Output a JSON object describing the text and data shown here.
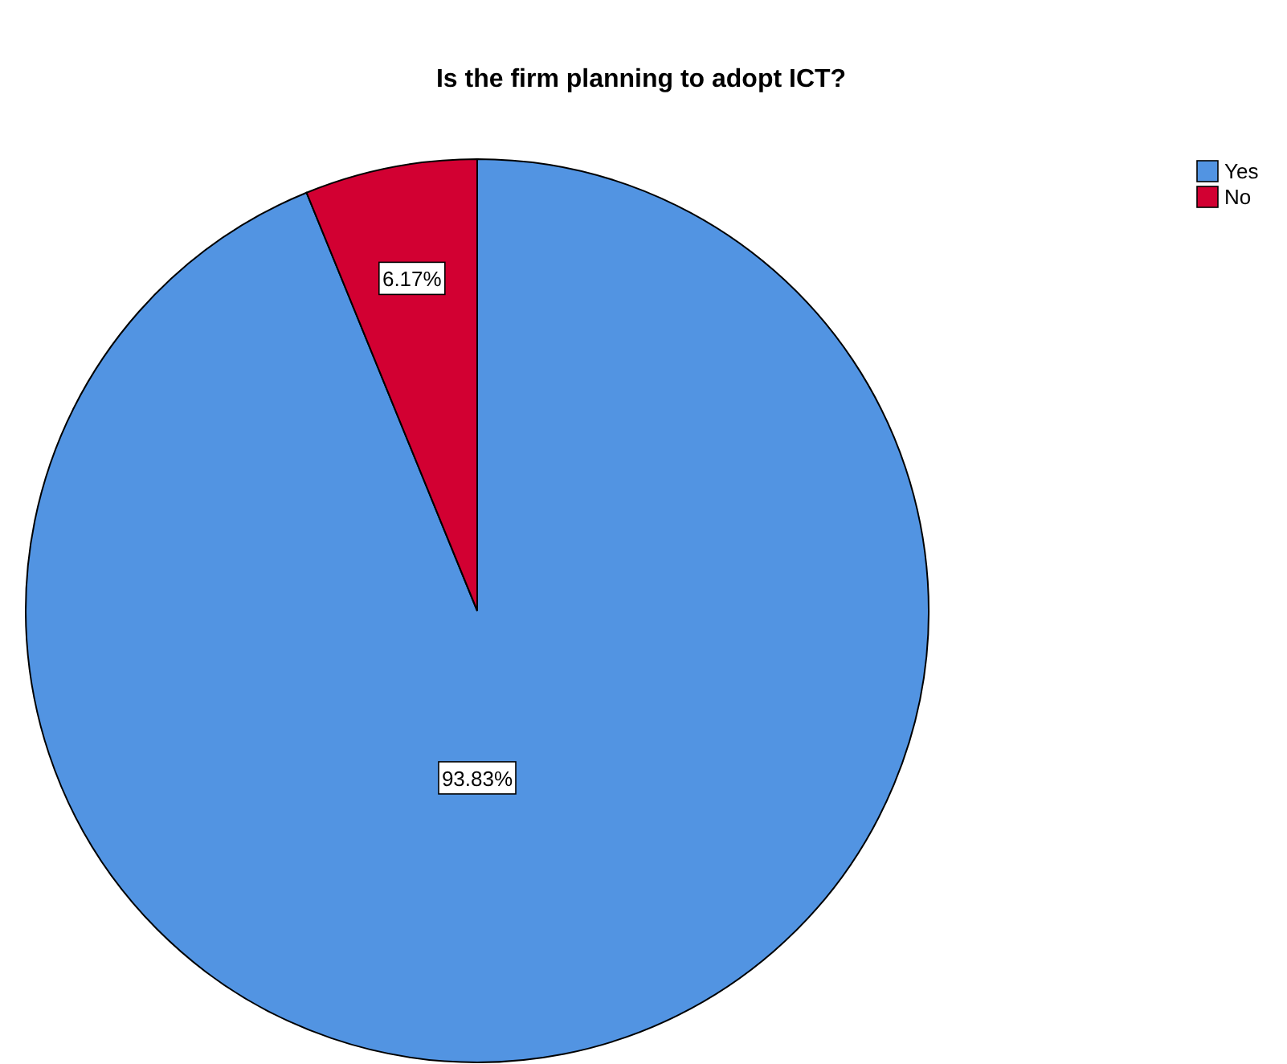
{
  "chart_data": {
    "type": "pie",
    "title": "Is the firm planning to adopt ICT?",
    "categories": [
      "Yes",
      "No"
    ],
    "values": [
      93.83,
      6.17
    ],
    "colors": [
      "#5294e2",
      "#d20032"
    ],
    "value_labels": [
      "93.83%",
      "6.17%"
    ],
    "legend": "top right"
  }
}
